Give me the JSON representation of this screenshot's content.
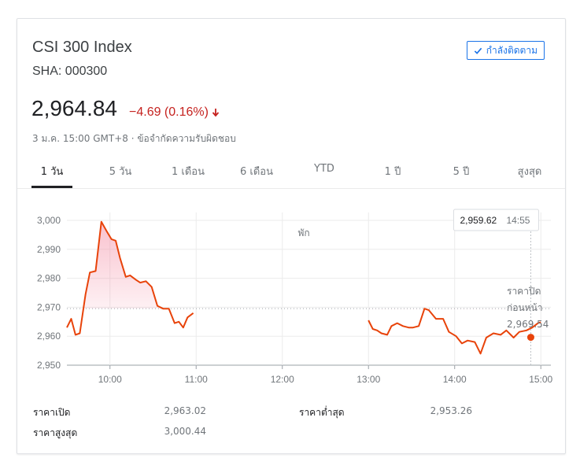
{
  "header": {
    "title": "CSI 300 Index",
    "ticker": "SHA: 000300",
    "follow_label": "กำลังติดตาม"
  },
  "quote": {
    "price": "2,964.84",
    "change": "−4.69 (0.16%)",
    "meta": "3 ม.ค. 15:00 GMT+8 · ข้อจำกัดความรับผิดชอบ"
  },
  "tabs": [
    {
      "label": "1 วัน",
      "active": true
    },
    {
      "label": "5 วัน",
      "active": false
    },
    {
      "label": "1 เดือน",
      "active": false
    },
    {
      "label": "6 เดือน",
      "active": false
    },
    {
      "label": "YTD",
      "active": false
    },
    {
      "label": "1 ปี",
      "active": false
    },
    {
      "label": "5 ปี",
      "active": false
    },
    {
      "label": "สูงสุด",
      "active": false
    }
  ],
  "tooltip": {
    "value": "2,959.62",
    "time": "14:55"
  },
  "chart_data": {
    "type": "line",
    "ylim": [
      2950,
      3000
    ],
    "yticks": [
      3000,
      2990,
      2980,
      2970,
      2960,
      2950
    ],
    "ytick_labels": [
      "3,000",
      "2,990",
      "2,980",
      "2,970",
      "2,960",
      "2,950"
    ],
    "xticks": [
      "10:00",
      "11:00",
      "12:00",
      "13:00",
      "14:00",
      "15:00"
    ],
    "xtick_minutes": [
      600,
      660,
      720,
      780,
      840,
      900
    ],
    "xlim_minutes": [
      570,
      907
    ],
    "break_label": "พัก",
    "previous_close": 2969.54,
    "previous_close_label_line1": "ราคาปิด",
    "previous_close_label_line2": "ก่อนหน้า",
    "previous_close_label_value": "2,969.54",
    "colors": {
      "line": "#e8430a",
      "fill": "#f48fa6"
    },
    "series": [
      {
        "x": [
          570,
          573,
          576,
          579,
          583,
          586,
          590,
          594,
          598,
          601,
          604,
          607,
          611,
          614,
          618,
          621,
          625,
          629,
          633,
          637,
          641,
          645,
          648,
          651,
          654,
          658,
          662,
          666,
          670
        ],
        "y": [
          2963,
          2966,
          2960.5,
          2961,
          2974.5,
          2982,
          2982.5,
          2999.5,
          2996,
          2993.5,
          2993,
          2987,
          2980.5,
          2981,
          2979.5,
          2978.5,
          2979,
          2977,
          2970.5,
          2969.5,
          2969.5,
          2964.5,
          2965,
          2963,
          2966.5,
          2968,
          null,
          null,
          null
        ]
      },
      {
        "x": [
          780,
          783,
          786,
          789,
          793,
          796,
          800,
          804,
          808,
          811,
          815,
          819,
          822,
          827,
          832,
          836,
          841,
          845,
          849,
          854,
          858,
          862,
          867,
          872,
          876,
          881,
          885,
          890,
          894,
          898,
          900
        ],
        "y": [
          2965.5,
          2962.5,
          2962,
          2961,
          2960.5,
          2963.5,
          2964.5,
          2963.5,
          2963,
          2963,
          2963.5,
          2969.5,
          2969,
          2966,
          2966,
          2961.5,
          2960,
          2957.5,
          2958.5,
          2958,
          2954,
          2959.5,
          2961,
          2960.5,
          2962,
          2959.5,
          2961.5,
          2962,
          2963,
          2964.5,
          2964.84
        ]
      }
    ],
    "cursor": {
      "x": 893,
      "y": 2959.62
    }
  },
  "stats": [
    {
      "label": "ราคาเปิด",
      "value": "2,963.02"
    },
    {
      "label": "ราคาต่ำสุด",
      "value": "2,953.26"
    },
    {
      "label": "ราคาสูงสุด",
      "value": "3,000.44"
    }
  ]
}
